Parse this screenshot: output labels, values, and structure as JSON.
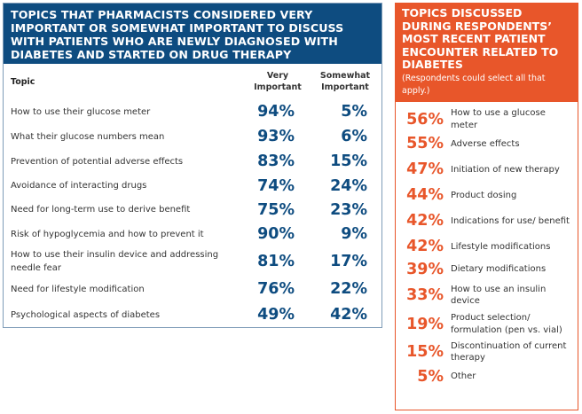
{
  "left_panel": {
    "title": "TOPICS THAT PHARMACISTS CONSIDERED VERY IMPORTANT OR SOMEWHAT IMPORTANT TO DISCUSS WITH PATIENTS WHO ARE NEWLY DIAGNOSED WITH DIABETES AND STARTED ON DRUG THERAPY",
    "columns": {
      "topic": "Topic",
      "very": "Very Important",
      "somewhat": "Somewhat Important"
    },
    "rows": [
      {
        "topic": "How to use their glucose meter",
        "very": "94%",
        "somewhat": "5%"
      },
      {
        "topic": "What their glucose numbers mean",
        "very": "93%",
        "somewhat": "6%"
      },
      {
        "topic": "Prevention of potential adverse effects",
        "very": "83%",
        "somewhat": "15%"
      },
      {
        "topic": "Avoidance of interacting drugs",
        "very": "74%",
        "somewhat": "24%"
      },
      {
        "topic": "Need for long-term use to derive benefit",
        "very": "75%",
        "somewhat": "23%"
      },
      {
        "topic": "Risk of hypoglycemia and how to prevent it",
        "very": "90%",
        "somewhat": "9%"
      },
      {
        "topic": "How to use their insulin device and addressing needle fear",
        "very": "81%",
        "somewhat": "17%"
      },
      {
        "topic": "Need for lifestyle modification",
        "very": "76%",
        "somewhat": "22%"
      },
      {
        "topic": "Psychological aspects of diabetes",
        "very": "49%",
        "somewhat": "42%"
      }
    ]
  },
  "right_panel": {
    "title": "TOPICS DISCUSSED DURING RESPONDENTS’ MOST RECENT PATIENT ENCOUNTER RELATED TO DIABETES",
    "subtitle": "(Respondents could select all that apply.)",
    "items": [
      {
        "pct": "56%",
        "label": "How to use a glucose meter"
      },
      {
        "pct": "55%",
        "label": "Adverse effects"
      },
      {
        "pct": "47%",
        "label": "Initiation of new therapy"
      },
      {
        "pct": "44%",
        "label": "Product dosing"
      },
      {
        "pct": "42%",
        "label": "Indications for use/ benefit"
      },
      {
        "pct": "42%",
        "label": "Lifestyle modifications"
      },
      {
        "pct": "39%",
        "label": "Dietary modifications"
      },
      {
        "pct": "33%",
        "label": "How to use an insulin device"
      },
      {
        "pct": "19%",
        "label": "Product selection/ formulation (pen vs. vial)"
      },
      {
        "pct": "15%",
        "label": "Discontinuation of current therapy"
      },
      {
        "pct": "5%",
        "label": "Other"
      }
    ]
  },
  "colors": {
    "blue": "#0e4c80",
    "orange": "#e8562a"
  }
}
